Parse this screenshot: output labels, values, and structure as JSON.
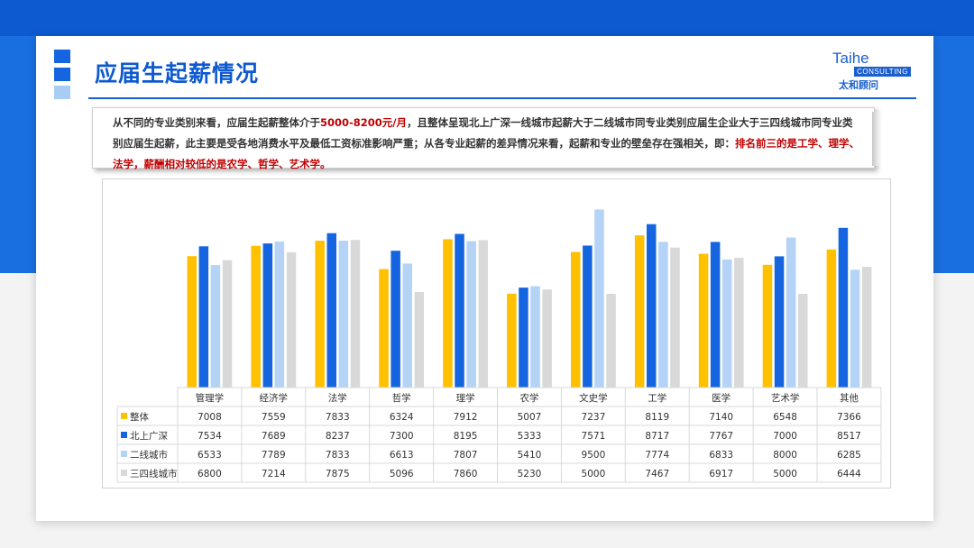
{
  "header": {
    "title": "应届生起薪情况",
    "logo": {
      "en": "Taihe",
      "sub": "CONSULTING",
      "cn": "太和顾问"
    }
  },
  "description": {
    "p1": "从不同的专业类别来看，应届生起薪整体介于",
    "p1_highlight": "5000-8200元/月",
    "p2": "，且整体呈现北上广深一线城市起薪大于二线城市同专业类别应届生企业大于三四线城市同专业类别应届生起薪，此主要是受各地消费水平及最低工资标准影响严重；从各专业起薪的差异情况来看，起薪和专业的壁垒存在强相关，即：",
    "p2_highlight": "排名前三的是工学、理学、法学，薪酬相对较低的是农学、哲学、艺术学。"
  },
  "chart_data": {
    "type": "bar",
    "categories": [
      "管理学",
      "经济学",
      "法学",
      "哲学",
      "理学",
      "农学",
      "文史学",
      "工学",
      "医学",
      "艺术学",
      "其他"
    ],
    "series": [
      {
        "name": "整体",
        "color": "#ffc000",
        "values": [
          7008,
          7559,
          7833,
          6324,
          7912,
          5007,
          7237,
          8119,
          7140,
          6548,
          7366
        ]
      },
      {
        "name": "北上广深",
        "color": "#1565e0",
        "values": [
          7534,
          7689,
          8237,
          7300,
          8195,
          5333,
          7571,
          8717,
          7767,
          7000,
          8517
        ]
      },
      {
        "name": "二线城市",
        "color": "#b4d3f7",
        "values": [
          6533,
          7789,
          7833,
          6613,
          7807,
          5410,
          9500,
          7774,
          6833,
          8000,
          6285
        ]
      },
      {
        "name": "三四线城市",
        "color": "#d9d9d9",
        "values": [
          6800,
          7214,
          7875,
          5096,
          7860,
          5230,
          5000,
          7467,
          6917,
          5000,
          6444
        ]
      }
    ],
    "ylim": [
      0,
      10000
    ],
    "grid": false,
    "legend": "table-bottom"
  }
}
